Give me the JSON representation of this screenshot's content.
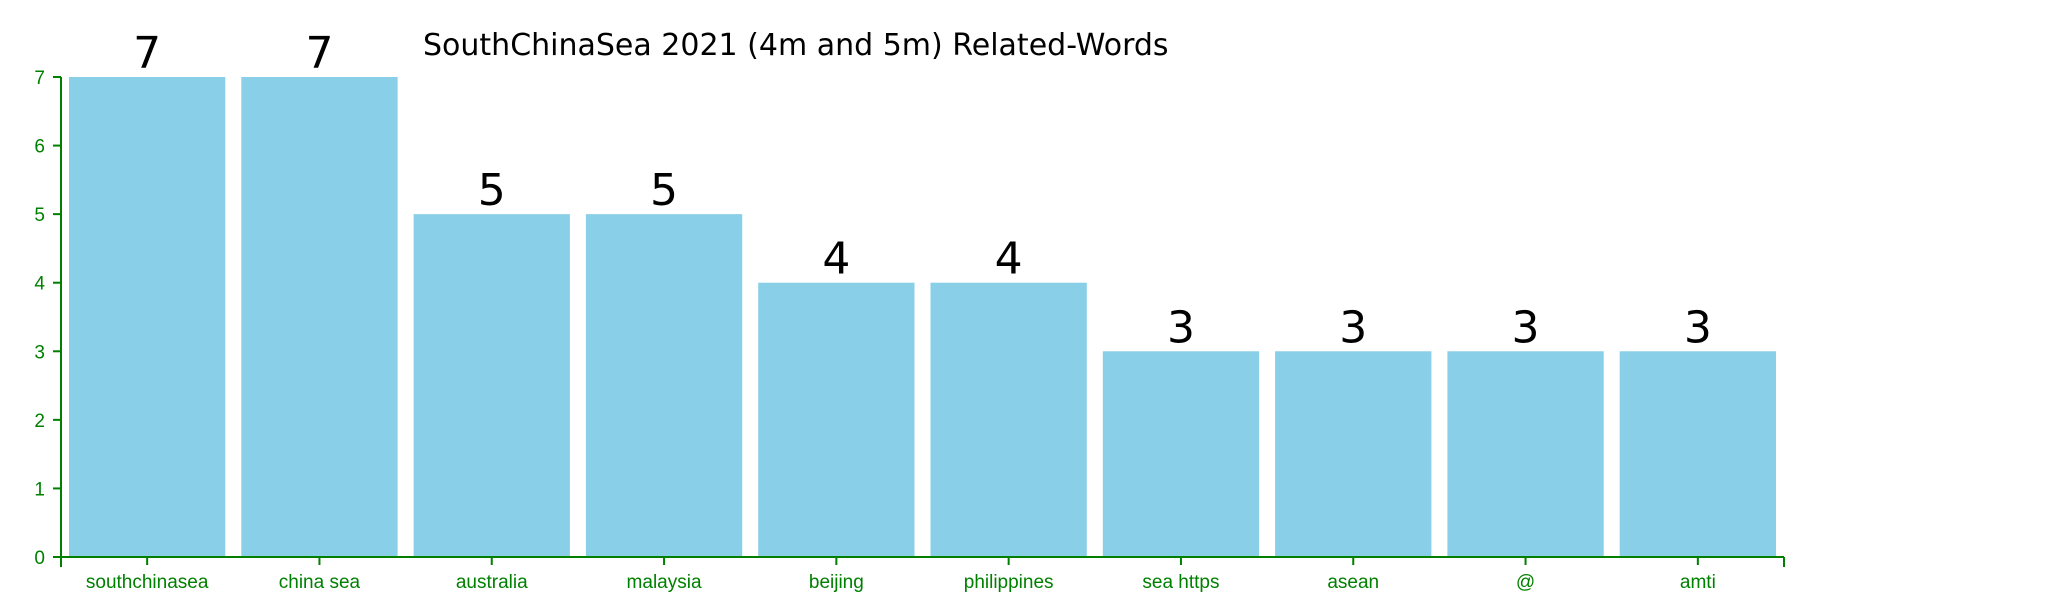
{
  "chart_data": {
    "type": "bar",
    "title": "SouthChinaSea 2021 (4m and 5m) Related-Words",
    "xlabel": "",
    "ylabel": "",
    "categories": [
      "southchinasea",
      "china sea",
      "australia",
      "malaysia",
      "beijing",
      "philippines",
      "sea https",
      "asean",
      "@",
      "amti"
    ],
    "values": [
      7,
      7,
      5,
      5,
      4,
      4,
      3,
      3,
      3,
      3
    ],
    "ylim": [
      0,
      7
    ],
    "yticks": [
      0,
      1,
      2,
      3,
      4,
      5,
      6,
      7
    ],
    "grid": false,
    "legend": "none",
    "colors": {
      "bar": "#89cfe8",
      "axis": "#008000",
      "value_label": "#000000"
    }
  }
}
